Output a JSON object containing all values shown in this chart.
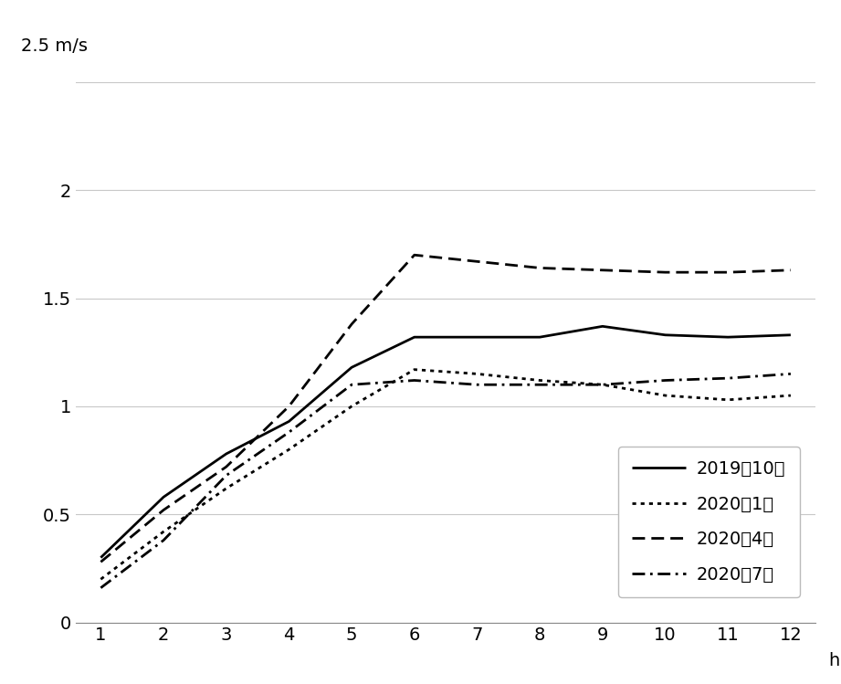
{
  "x": [
    1,
    2,
    3,
    4,
    5,
    6,
    7,
    8,
    9,
    10,
    11,
    12
  ],
  "series": {
    "2019年10月": {
      "values": [
        0.3,
        0.58,
        0.78,
        0.93,
        1.18,
        1.32,
        1.32,
        1.32,
        1.37,
        1.33,
        1.32,
        1.33
      ],
      "linestyle": "solid",
      "linewidth": 2.0,
      "color": "#000000"
    },
    "2020年1月": {
      "values": [
        0.2,
        0.42,
        0.62,
        0.8,
        1.0,
        1.17,
        1.15,
        1.12,
        1.1,
        1.05,
        1.03,
        1.05
      ],
      "linestyle": "dotted",
      "linewidth": 2.0,
      "color": "#000000"
    },
    "2020年4月": {
      "values": [
        0.28,
        0.52,
        0.72,
        1.0,
        1.38,
        1.7,
        1.67,
        1.64,
        1.63,
        1.62,
        1.62,
        1.63
      ],
      "linestyle": "dashed",
      "linewidth": 2.0,
      "color": "#000000"
    },
    "2020年7月": {
      "values": [
        0.16,
        0.38,
        0.68,
        0.88,
        1.1,
        1.12,
        1.1,
        1.1,
        1.1,
        1.12,
        1.13,
        1.15
      ],
      "linestyle": "dashdot",
      "linewidth": 2.0,
      "color": "#000000"
    }
  },
  "xlabel": "h",
  "ylabel_top": "2.5 m/s",
  "xlim": [
    0.6,
    12.4
  ],
  "ylim": [
    0,
    2.5
  ],
  "yticks": [
    0,
    0.5,
    1,
    1.5,
    2
  ],
  "ytick_labels": [
    "0",
    "0.5",
    "1",
    "1.5",
    "2"
  ],
  "xticks": [
    1,
    2,
    3,
    4,
    5,
    6,
    7,
    8,
    9,
    10,
    11,
    12
  ],
  "background_color": "#ffffff",
  "grid_color": "#c8c8c8",
  "axis_fontsize": 14,
  "legend_fontsize": 14
}
